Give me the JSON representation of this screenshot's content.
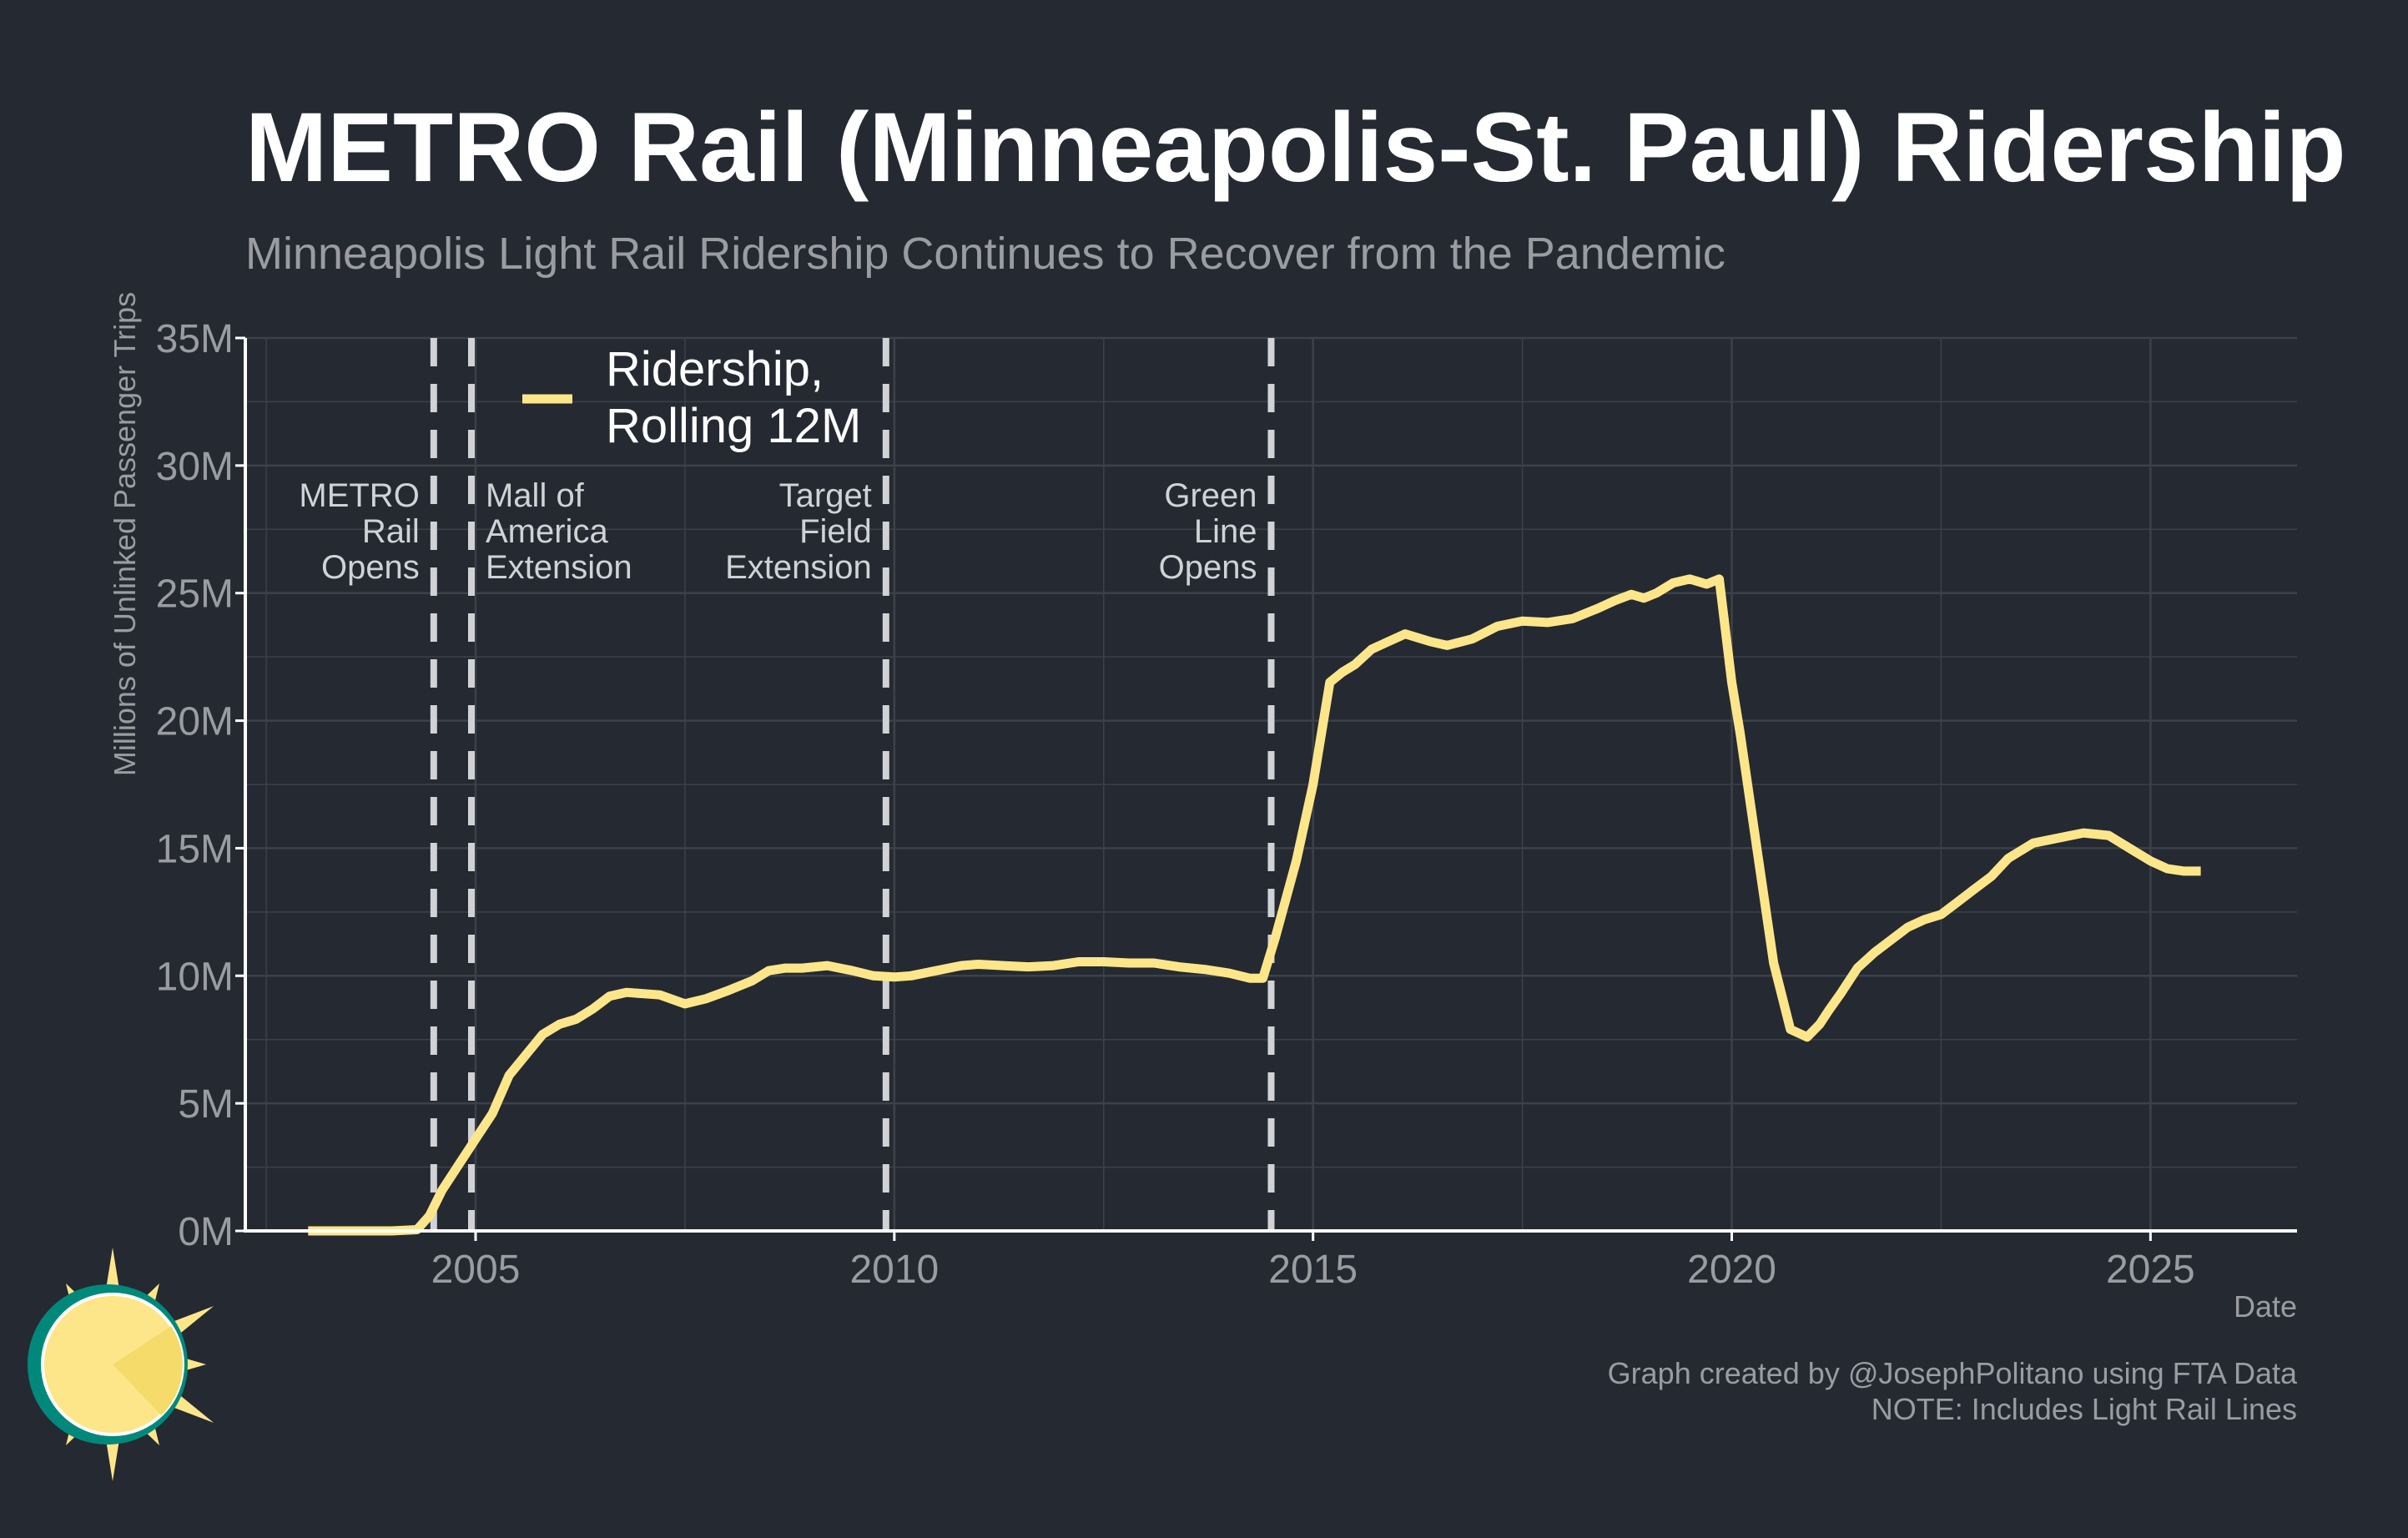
{
  "colors": {
    "background": "#252932",
    "text": "#ffffff",
    "muted_text": "#9a9ca1",
    "grid": "#3c414a",
    "series": "#fde68a",
    "event_line": "#d0d2d6",
    "logo_teal": "#00897b",
    "logo_sun": "#fde68a",
    "logo_sun_dark": "#f5dc6a"
  },
  "logo": {
    "name": "sun-logo"
  },
  "chart_data": {
    "type": "line",
    "title": "METRO Rail (Minneapolis-St. Paul) Ridership",
    "subtitle": "Minneapolis Light Rail Ridership Continues to Recover from the Pandemic",
    "xlabel": "Date",
    "ylabel": "Millions of Unlinked Passenger Trips",
    "xlim": [
      2002.25,
      2026.75
    ],
    "ylim": [
      0,
      35
    ],
    "x_ticks": [
      2005,
      2010,
      2015,
      2020,
      2025
    ],
    "x_tick_labels": [
      "2005",
      "2010",
      "2015",
      "2020",
      "2025"
    ],
    "y_ticks": [
      0,
      5,
      10,
      15,
      20,
      25,
      30,
      35
    ],
    "y_tick_labels": [
      "0M",
      "5M",
      "10M",
      "15M",
      "20M",
      "25M",
      "30M",
      "35M"
    ],
    "grid": true,
    "legend_position": "top-left",
    "legend": [
      "Ridership,",
      "Rolling 12M"
    ],
    "series": [
      {
        "name": "Ridership, Rolling 12M",
        "x": [
          2003.0,
          2003.5,
          2004.0,
          2004.3,
          2004.45,
          2004.6,
          2004.8,
          2005.0,
          2005.2,
          2005.4,
          2005.6,
          2005.8,
          2006.0,
          2006.2,
          2006.4,
          2006.6,
          2006.8,
          2007.0,
          2007.2,
          2007.5,
          2007.75,
          2008.0,
          2008.3,
          2008.5,
          2008.7,
          2008.9,
          2009.2,
          2009.5,
          2009.75,
          2010.0,
          2010.2,
          2010.5,
          2010.8,
          2011.0,
          2011.3,
          2011.6,
          2011.9,
          2012.2,
          2012.5,
          2012.8,
          2013.1,
          2013.4,
          2013.7,
          2014.0,
          2014.25,
          2014.4,
          2014.55,
          2014.8,
          2015.0,
          2015.2,
          2015.35,
          2015.5,
          2015.7,
          2015.9,
          2016.1,
          2016.4,
          2016.6,
          2016.9,
          2017.2,
          2017.5,
          2017.8,
          2018.1,
          2018.4,
          2018.6,
          2018.8,
          2018.95,
          2019.1,
          2019.3,
          2019.5,
          2019.7,
          2019.85,
          2020.0,
          2020.1,
          2020.3,
          2020.5,
          2020.7,
          2020.9,
          2021.05,
          2021.15,
          2021.3,
          2021.5,
          2021.7,
          2021.9,
          2022.1,
          2022.3,
          2022.5,
          2022.7,
          2022.9,
          2023.1,
          2023.3,
          2023.6,
          2023.9,
          2024.2,
          2024.5,
          2024.8,
          2025.0,
          2025.2,
          2025.4,
          2025.6
        ],
        "y": [
          0,
          0,
          0,
          0.05,
          0.6,
          1.6,
          2.6,
          3.6,
          4.6,
          6.1,
          6.9,
          7.7,
          8.1,
          8.3,
          8.7,
          9.2,
          9.35,
          9.3,
          9.25,
          8.9,
          9.1,
          9.4,
          9.8,
          10.2,
          10.3,
          10.3,
          10.4,
          10.2,
          10.0,
          9.95,
          10.0,
          10.2,
          10.4,
          10.45,
          10.4,
          10.35,
          10.4,
          10.55,
          10.55,
          10.5,
          10.5,
          10.35,
          10.25,
          10.1,
          9.9,
          9.9,
          11.5,
          14.5,
          17.5,
          21.5,
          21.9,
          22.2,
          22.8,
          23.1,
          23.4,
          23.1,
          22.95,
          23.2,
          23.7,
          23.9,
          23.85,
          24.0,
          24.4,
          24.7,
          24.95,
          24.8,
          25.0,
          25.4,
          25.55,
          25.35,
          25.55,
          21.5,
          19.5,
          15.0,
          10.5,
          7.9,
          7.6,
          8.1,
          8.6,
          9.3,
          10.3,
          10.9,
          11.4,
          11.9,
          12.2,
          12.4,
          12.9,
          13.4,
          13.9,
          14.6,
          15.2,
          15.4,
          15.6,
          15.5,
          14.9,
          14.5,
          14.2,
          14.1,
          14.1
        ]
      }
    ],
    "events": [
      {
        "x": 2004.5,
        "label": [
          "METRO",
          "Rail",
          "Opens"
        ],
        "label_side": "left"
      },
      {
        "x": 2004.95,
        "label": [
          "Mall of",
          "America",
          "Extension"
        ],
        "label_side": "right"
      },
      {
        "x": 2009.9,
        "label": [
          "Target",
          "Field",
          "Extension"
        ],
        "label_side": "left"
      },
      {
        "x": 2014.5,
        "label": [
          "Green",
          "Line",
          "Opens"
        ],
        "label_side": "left"
      }
    ]
  },
  "footer": {
    "credit": "Graph created by @JosephPolitano using FTA Data",
    "note": "NOTE: Includes Light Rail Lines"
  }
}
